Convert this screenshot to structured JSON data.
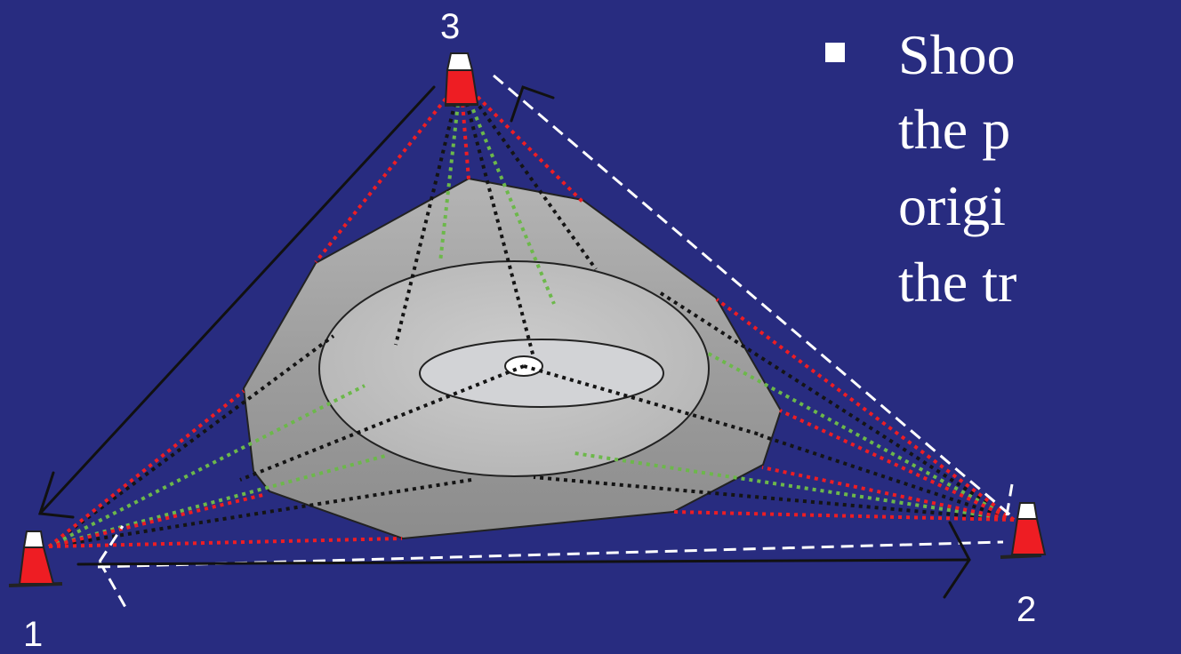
{
  "stations": [
    {
      "id": "station-1",
      "label": "1"
    },
    {
      "id": "station-2",
      "label": "2"
    },
    {
      "id": "station-3",
      "label": "3"
    }
  ],
  "bullet": {
    "lines": [
      "Shoo",
      "the p",
      "origi",
      "the tr"
    ]
  },
  "colors": {
    "background": "#282C80",
    "cone_red": "#EE1D23",
    "ray_red": "#EE1D23",
    "ray_green": "#6CB84A",
    "ray_black": "#141414",
    "dashed_white": "#FFFFFF",
    "outer_outcrop": "#9C9C9C",
    "middle_ellipse": "#BEBEBE",
    "inner_ellipse": "#D2D3D6",
    "center_point": "#FFFFFF"
  }
}
